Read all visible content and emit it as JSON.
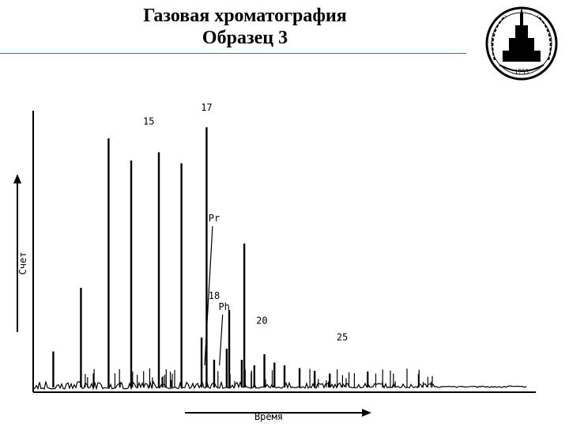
{
  "header": {
    "title_line1": "Газовая хроматография",
    "title_line2": "Образец 3",
    "emblem_text": "1755",
    "colors": {
      "rule": "#2e7d6b",
      "ink": "#000000"
    }
  },
  "chart_data": {
    "type": "chromatogram",
    "title": "Газовая хроматография Образец 3",
    "xlabel": "Время",
    "ylabel": "Счет",
    "xlim": [
      0,
      100
    ],
    "ylim": [
      0,
      100
    ],
    "grid": false,
    "axes_ticks": false,
    "peaks": [
      {
        "x": 4,
        "y": 13
      },
      {
        "x": 9.5,
        "y": 36
      },
      {
        "x": 15,
        "y": 90
      },
      {
        "x": 19.5,
        "y": 82
      },
      {
        "x": 25,
        "y": 85
      },
      {
        "x": 29.5,
        "y": 81
      },
      {
        "x": 33.5,
        "y": 18
      },
      {
        "x": 34.5,
        "y": 94
      },
      {
        "x": 36,
        "y": 10
      },
      {
        "x": 38.5,
        "y": 14
      },
      {
        "x": 39,
        "y": 28
      },
      {
        "x": 41.5,
        "y": 10
      },
      {
        "x": 42,
        "y": 52
      },
      {
        "x": 44,
        "y": 8
      },
      {
        "x": 46,
        "y": 12
      },
      {
        "x": 48,
        "y": 9
      },
      {
        "x": 50,
        "y": 8
      },
      {
        "x": 53,
        "y": 7
      },
      {
        "x": 56,
        "y": 6
      },
      {
        "x": 59,
        "y": 5
      }
    ],
    "annotations": [
      {
        "label": "17",
        "x": 34.5,
        "y": 100
      },
      {
        "label": "15",
        "x": 23,
        "y": 95
      },
      {
        "label": "Pr",
        "x": 36,
        "y": 60
      },
      {
        "label": "18",
        "x": 36,
        "y": 32
      },
      {
        "label": "Ph",
        "x": 38,
        "y": 28
      },
      {
        "label": "20",
        "x": 45.5,
        "y": 23
      },
      {
        "label": "25",
        "x": 61.5,
        "y": 17
      }
    ]
  }
}
